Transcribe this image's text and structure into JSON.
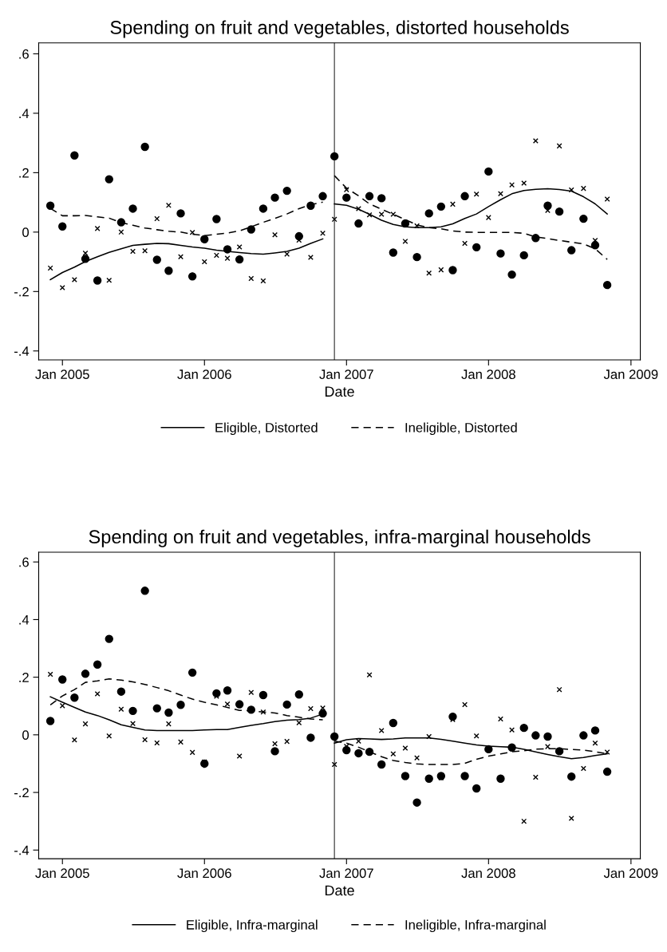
{
  "chart_data": [
    {
      "type": "scatter",
      "title": "Spending on fruit and vegetables, distorted households",
      "xlabel": "Date",
      "x": [
        "2004-12",
        "2005-01",
        "2005-02",
        "2005-03",
        "2005-04",
        "2005-05",
        "2005-06",
        "2005-07",
        "2005-08",
        "2005-09",
        "2005-10",
        "2005-11",
        "2005-12",
        "2006-01",
        "2006-02",
        "2006-03",
        "2006-04",
        "2006-05",
        "2006-06",
        "2006-07",
        "2006-08",
        "2006-09",
        "2006-10",
        "2006-11",
        "2006-12",
        "2007-01",
        "2007-02",
        "2007-03",
        "2007-04",
        "2007-05",
        "2007-06",
        "2007-07",
        "2007-08",
        "2007-09",
        "2007-10",
        "2007-11",
        "2007-12",
        "2008-01",
        "2008-02",
        "2008-03",
        "2008-04",
        "2008-05",
        "2008-06",
        "2008-07",
        "2008-08",
        "2008-09",
        "2008-10",
        "2008-11"
      ],
      "series": [
        {
          "marker": "circle",
          "color": "#000000",
          "values": [
            0.089,
            0.019,
            0.258,
            -0.09,
            -0.163,
            0.178,
            0.033,
            0.079,
            0.287,
            -0.093,
            -0.13,
            0.063,
            -0.149,
            -0.024,
            0.044,
            -0.058,
            -0.092,
            0.009,
            0.079,
            0.116,
            0.139,
            -0.014,
            0.089,
            0.121,
            0.255,
            0.116,
            0.029,
            0.121,
            0.114,
            -0.069,
            0.029,
            -0.084,
            0.063,
            0.086,
            -0.128,
            0.121,
            -0.051,
            0.204,
            -0.072,
            -0.143,
            -0.078,
            -0.02,
            0.089,
            0.069,
            -0.061,
            0.045,
            -0.044,
            -0.178
          ]
        },
        {
          "marker": "cross",
          "color": "#000000",
          "values": [
            -0.121,
            -0.187,
            -0.16,
            -0.071,
            0.012,
            -0.162,
            0.0,
            -0.065,
            -0.063,
            0.045,
            0.09,
            -0.083,
            -0.001,
            -0.1,
            -0.078,
            -0.088,
            -0.05,
            -0.156,
            -0.164,
            -0.009,
            -0.074,
            -0.027,
            -0.085,
            -0.004,
            0.043,
            0.143,
            0.079,
            0.058,
            0.06,
            0.06,
            -0.031,
            0.021,
            -0.138,
            -0.127,
            0.094,
            -0.038,
            0.128,
            0.049,
            0.129,
            0.159,
            0.165,
            0.307,
            0.073,
            0.29,
            0.142,
            0.147,
            -0.028,
            0.111
          ]
        },
        {
          "type": "line",
          "name": "Eligible, Distorted",
          "line_style": "solid",
          "color": "#000000",
          "x": [
            "2004-12",
            "2005-01",
            "2005-02",
            "2005-03",
            "2005-04",
            "2005-05",
            "2005-06",
            "2005-07",
            "2005-08",
            "2005-09",
            "2005-10",
            "2005-11",
            "2005-12",
            "2006-01",
            "2006-02",
            "2006-03",
            "2006-04",
            "2006-05",
            "2006-06",
            "2006-07",
            "2006-08",
            "2006-09",
            "2006-10",
            "2006-11"
          ],
          "values": [
            -0.16,
            -0.136,
            -0.118,
            -0.099,
            -0.083,
            -0.068,
            -0.056,
            -0.045,
            -0.041,
            -0.038,
            -0.039,
            -0.045,
            -0.05,
            -0.054,
            -0.061,
            -0.065,
            -0.069,
            -0.072,
            -0.074,
            -0.07,
            -0.065,
            -0.054,
            -0.038,
            -0.023
          ]
        },
        {
          "type": "line",
          "line_style": "solid",
          "color": "#000000",
          "x": [
            "2006-12",
            "2007-01",
            "2007-02",
            "2007-03",
            "2007-04",
            "2007-05",
            "2007-06",
            "2007-07",
            "2007-08",
            "2007-09",
            "2007-10",
            "2007-11",
            "2007-12",
            "2008-01",
            "2008-02",
            "2008-03",
            "2008-04",
            "2008-05",
            "2008-06",
            "2008-07",
            "2008-08",
            "2008-09",
            "2008-10",
            "2008-11"
          ],
          "values": [
            0.095,
            0.09,
            0.077,
            0.06,
            0.04,
            0.026,
            0.018,
            0.015,
            0.015,
            0.018,
            0.028,
            0.046,
            0.061,
            0.086,
            0.109,
            0.129,
            0.14,
            0.144,
            0.146,
            0.143,
            0.138,
            0.119,
            0.095,
            0.061
          ]
        },
        {
          "type": "line",
          "name": "Ineligible, Distorted",
          "line_style": "dashed",
          "color": "#000000",
          "x": [
            "2004-12",
            "2005-01",
            "2005-02",
            "2005-03",
            "2005-04",
            "2005-05",
            "2005-06",
            "2005-07",
            "2005-08",
            "2005-09",
            "2005-10",
            "2005-11",
            "2005-12",
            "2006-01",
            "2006-02",
            "2006-03",
            "2006-04",
            "2006-05",
            "2006-06",
            "2006-07",
            "2006-08",
            "2006-09",
            "2006-10",
            "2006-11"
          ],
          "values": [
            0.08,
            0.055,
            0.055,
            0.056,
            0.051,
            0.047,
            0.032,
            0.023,
            0.014,
            0.008,
            0.003,
            0.0,
            -0.007,
            -0.012,
            -0.007,
            -0.003,
            0.004,
            0.018,
            0.033,
            0.046,
            0.061,
            0.079,
            0.092,
            0.101
          ]
        },
        {
          "type": "line",
          "line_style": "dashed",
          "color": "#000000",
          "x": [
            "2006-12",
            "2007-01",
            "2007-02",
            "2007-03",
            "2007-04",
            "2007-05",
            "2007-06",
            "2007-07",
            "2007-08",
            "2007-09",
            "2007-10",
            "2007-11",
            "2007-12",
            "2008-01",
            "2008-02",
            "2008-03",
            "2008-04",
            "2008-05",
            "2008-06",
            "2008-07",
            "2008-08",
            "2008-09",
            "2008-10",
            "2008-11"
          ],
          "values": [
            0.19,
            0.148,
            0.122,
            0.095,
            0.077,
            0.06,
            0.042,
            0.024,
            0.015,
            0.011,
            0.004,
            0.0,
            -0.001,
            -0.001,
            -0.001,
            -0.001,
            -0.004,
            -0.016,
            -0.022,
            -0.028,
            -0.034,
            -0.04,
            -0.056,
            -0.092
          ]
        }
      ],
      "xlim": [
        "2004-11-01",
        "2009-01-25"
      ],
      "xticks": [
        {
          "value": "2005-01",
          "label": "Jan 2005"
        },
        {
          "value": "2006-01",
          "label": "Jan 2006"
        },
        {
          "value": "2007-01",
          "label": "Jan 2007"
        },
        {
          "value": "2008-01",
          "label": "Jan 2008"
        },
        {
          "value": "2009-01",
          "label": "Jan 2009"
        }
      ],
      "ylim": [
        -0.43,
        0.637
      ],
      "yticks": [
        {
          "value": -0.4,
          "label": "-.4"
        },
        {
          "value": -0.2,
          "label": "-.2"
        },
        0,
        {
          "value": 0.2,
          "label": ".2"
        },
        {
          "value": 0.4,
          "label": ".4"
        },
        {
          "value": 0.6,
          "label": ".6"
        }
      ],
      "ref_lines": [
        {
          "axis": "x",
          "value": "2006-12",
          "color": "#555555"
        }
      ],
      "grid": false,
      "legend": "bottom"
    },
    {
      "type": "scatter",
      "title": "Spending on fruit and vegetables, infra-marginal households",
      "xlabel": "Date",
      "x": [
        "2004-12",
        "2005-01",
        "2005-02",
        "2005-03",
        "2005-04",
        "2005-05",
        "2005-06",
        "2005-07",
        "2005-08",
        "2005-09",
        "2005-10",
        "2005-11",
        "2005-12",
        "2006-01",
        "2006-02",
        "2006-03",
        "2006-04",
        "2006-05",
        "2006-06",
        "2006-07",
        "2006-08",
        "2006-09",
        "2006-10",
        "2006-11",
        "2006-12",
        "2007-01",
        "2007-02",
        "2007-03",
        "2007-04",
        "2007-05",
        "2007-06",
        "2007-07",
        "2007-08",
        "2007-09",
        "2007-10",
        "2007-11",
        "2007-12",
        "2008-01",
        "2008-02",
        "2008-03",
        "2008-04",
        "2008-05",
        "2008-06",
        "2008-07",
        "2008-08",
        "2008-09",
        "2008-10",
        "2008-11"
      ],
      "series": [
        {
          "marker": "circle",
          "color": "#000000",
          "values": [
            0.048,
            0.192,
            0.129,
            0.212,
            0.244,
            0.333,
            0.15,
            0.083,
            0.5,
            0.092,
            0.077,
            0.104,
            0.216,
            -0.1,
            0.144,
            0.154,
            0.106,
            0.087,
            0.138,
            -0.057,
            0.105,
            0.14,
            -0.01,
            0.074,
            -0.006,
            -0.053,
            -0.064,
            -0.059,
            -0.103,
            0.041,
            -0.143,
            -0.235,
            -0.152,
            -0.143,
            0.063,
            -0.143,
            -0.186,
            -0.05,
            -0.152,
            -0.044,
            0.024,
            -0.002,
            -0.006,
            -0.057,
            -0.145,
            -0.002,
            0.015,
            -0.128
          ]
        },
        {
          "marker": "cross",
          "color": "#000000",
          "values": [
            0.21,
            0.101,
            -0.018,
            0.038,
            0.142,
            -0.004,
            0.089,
            0.039,
            -0.017,
            -0.028,
            0.038,
            -0.025,
            -0.061,
            -0.094,
            0.134,
            0.107,
            -0.074,
            0.147,
            0.079,
            -0.031,
            -0.023,
            0.042,
            0.091,
            0.093,
            -0.103,
            -0.04,
            -0.022,
            0.208,
            0.015,
            -0.066,
            -0.046,
            -0.08,
            -0.006,
            -0.149,
            0.053,
            0.105,
            -0.004,
            null,
            0.055,
            0.017,
            -0.3,
            -0.147,
            -0.041,
            0.157,
            -0.29,
            -0.117,
            -0.029,
            -0.06
          ]
        },
        {
          "type": "line",
          "name": "Eligible, Infra-marginal",
          "line_style": "solid",
          "color": "#000000",
          "x": [
            "2004-12",
            "2005-01",
            "2005-02",
            "2005-03",
            "2005-04",
            "2005-05",
            "2005-06",
            "2005-07",
            "2005-08",
            "2005-09",
            "2005-10",
            "2005-11",
            "2005-12",
            "2006-01",
            "2006-02",
            "2006-03",
            "2006-04",
            "2006-05",
            "2006-06",
            "2006-07",
            "2006-08",
            "2006-09",
            "2006-10",
            "2006-11"
          ],
          "values": [
            0.132,
            0.113,
            0.095,
            0.079,
            0.067,
            0.052,
            0.035,
            0.026,
            0.017,
            0.015,
            0.015,
            0.015,
            0.015,
            0.017,
            0.018,
            0.018,
            0.026,
            0.033,
            0.039,
            0.046,
            0.051,
            0.053,
            0.058,
            0.072
          ]
        },
        {
          "type": "line",
          "line_style": "solid",
          "color": "#000000",
          "x": [
            "2006-12",
            "2007-01",
            "2007-02",
            "2007-03",
            "2007-04",
            "2007-05",
            "2007-06",
            "2007-07",
            "2007-08",
            "2007-09",
            "2007-10",
            "2007-11",
            "2007-12",
            "2008-01",
            "2008-02",
            "2008-03",
            "2008-04",
            "2008-05",
            "2008-06",
            "2008-07",
            "2008-08",
            "2008-09",
            "2008-10",
            "2008-11"
          ],
          "values": [
            -0.029,
            -0.017,
            -0.013,
            -0.014,
            -0.016,
            -0.014,
            -0.011,
            -0.011,
            -0.011,
            -0.016,
            -0.022,
            -0.029,
            -0.035,
            -0.039,
            -0.041,
            -0.043,
            -0.05,
            -0.059,
            -0.068,
            -0.076,
            -0.083,
            -0.079,
            -0.072,
            -0.066
          ]
        },
        {
          "type": "line",
          "name": "Ineligible, Infra-marginal",
          "line_style": "dashed",
          "color": "#000000",
          "x": [
            "2004-12",
            "2005-01",
            "2005-02",
            "2005-03",
            "2005-04",
            "2005-05",
            "2005-06",
            "2005-07",
            "2005-08",
            "2005-09",
            "2005-10",
            "2005-11",
            "2005-12",
            "2006-01",
            "2006-02",
            "2006-03",
            "2006-04",
            "2006-05",
            "2006-06",
            "2006-07",
            "2006-08",
            "2006-09",
            "2006-10",
            "2006-11"
          ],
          "values": [
            0.104,
            0.135,
            0.157,
            0.182,
            0.187,
            0.194,
            0.19,
            0.184,
            0.175,
            0.164,
            0.153,
            0.138,
            0.124,
            0.113,
            0.104,
            0.095,
            0.085,
            0.083,
            0.079,
            0.076,
            0.067,
            0.061,
            0.055,
            0.052
          ]
        },
        {
          "type": "line",
          "line_style": "dashed",
          "color": "#000000",
          "x": [
            "2006-12",
            "2007-01",
            "2007-02",
            "2007-03",
            "2007-04",
            "2007-05",
            "2007-06",
            "2007-07",
            "2007-08",
            "2007-09",
            "2007-10",
            "2007-11",
            "2007-12",
            "2008-01",
            "2008-02",
            "2008-03",
            "2008-04",
            "2008-05",
            "2008-06",
            "2008-07",
            "2008-08",
            "2008-09",
            "2008-10",
            "2008-11"
          ],
          "values": [
            -0.022,
            -0.029,
            -0.043,
            -0.059,
            -0.076,
            -0.089,
            -0.096,
            -0.101,
            -0.103,
            -0.103,
            -0.103,
            -0.099,
            -0.085,
            -0.074,
            -0.066,
            -0.059,
            -0.055,
            -0.05,
            -0.048,
            -0.048,
            -0.051,
            -0.053,
            -0.059,
            -0.066
          ]
        }
      ],
      "xlim": [
        "2004-11-01",
        "2009-01-25"
      ],
      "xticks": [
        {
          "value": "2005-01",
          "label": "Jan 2005"
        },
        {
          "value": "2006-01",
          "label": "Jan 2006"
        },
        {
          "value": "2007-01",
          "label": "Jan 2007"
        },
        {
          "value": "2008-01",
          "label": "Jan 2008"
        },
        {
          "value": "2009-01",
          "label": "Jan 2009"
        }
      ],
      "ylim": [
        -0.43,
        0.634
      ],
      "yticks": [
        {
          "value": -0.4,
          "label": "-.4"
        },
        {
          "value": -0.2,
          "label": "-.2"
        },
        0,
        {
          "value": 0.2,
          "label": ".2"
        },
        {
          "value": 0.4,
          "label": ".4"
        },
        {
          "value": 0.6,
          "label": ".6"
        }
      ],
      "ref_lines": [
        {
          "axis": "x",
          "value": "2006-12",
          "color": "#555555"
        }
      ],
      "grid": false,
      "legend": "bottom"
    }
  ]
}
